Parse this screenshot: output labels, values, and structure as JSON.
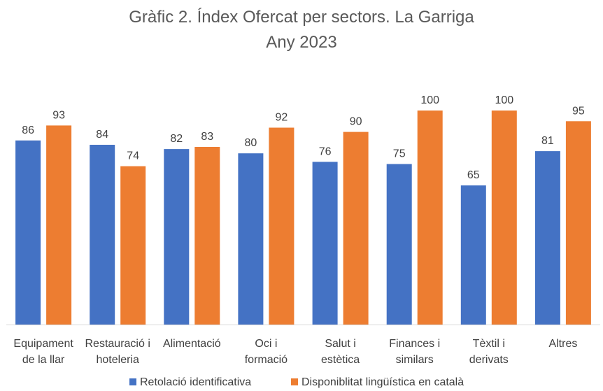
{
  "chart_data": {
    "type": "bar",
    "title": [
      "Gràfic 2. Índex Ofercat per sectors. La Garriga",
      "Any 2023"
    ],
    "categories": [
      [
        "Equipament",
        "de la llar"
      ],
      [
        "Restauració i",
        "hoteleria"
      ],
      [
        "Alimentació"
      ],
      [
        "Oci i",
        "formació"
      ],
      [
        "Salut i",
        "estètica"
      ],
      [
        "Finances i",
        "similars"
      ],
      [
        "Tèxtil i",
        "derivats"
      ],
      [
        "Altres"
      ]
    ],
    "series": [
      {
        "name": "Retolació identificativa",
        "color": "#4472C4",
        "values": [
          86,
          84,
          82,
          80,
          76,
          75,
          65,
          81
        ]
      },
      {
        "name": "Disponiblitat lingüística en català",
        "color": "#ED7D31",
        "values": [
          93,
          74,
          83,
          92,
          90,
          100,
          100,
          95
        ]
      }
    ],
    "ylim": [
      0,
      100
    ],
    "grid": false,
    "legend_position": "bottom"
  }
}
